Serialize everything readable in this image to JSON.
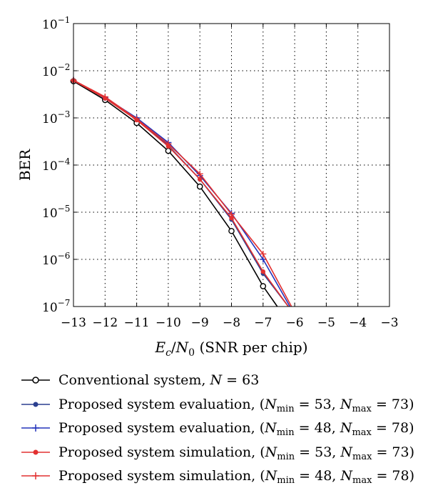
{
  "chart_data": {
    "type": "line",
    "xlabel": "E_c/N_0 (SNR per chip)",
    "xlabel_parts": {
      "var1": "E",
      "sub1": "c",
      "slash": "/",
      "var2": "N",
      "sub2": "0",
      "rest": " (SNR per chip)"
    },
    "ylabel": "BER",
    "xlim": [
      -13,
      -3
    ],
    "ylim": [
      1e-07,
      0.1
    ],
    "y_scale": "log",
    "grid": true,
    "grid_style": "dotted",
    "legend_placement": "below",
    "x_ticks": [
      -13,
      -12,
      -11,
      -10,
      -9,
      -8,
      -7,
      -6,
      -5,
      -4,
      -3
    ],
    "x_tick_labels": [
      "−13",
      "−12",
      "−11",
      "−10",
      "−9",
      "−8",
      "−7",
      "−6",
      "−5",
      "−4",
      "−3"
    ],
    "y_ticks": [
      {
        "base": "10",
        "exp": "−7",
        "value": 1e-07
      },
      {
        "base": "10",
        "exp": "−6",
        "value": 1e-06
      },
      {
        "base": "10",
        "exp": "−5",
        "value": 1e-05
      },
      {
        "base": "10",
        "exp": "−4",
        "value": 0.0001
      },
      {
        "base": "10",
        "exp": "−3",
        "value": 0.001
      },
      {
        "base": "10",
        "exp": "−2",
        "value": 0.01
      },
      {
        "base": "10",
        "exp": "−1",
        "value": 0.1
      }
    ],
    "series": [
      {
        "name": "Conventional system, N = 63",
        "color": "#000000",
        "marker": "circle-open",
        "x": [
          -13,
          -12,
          -11,
          -10,
          -9,
          -8,
          -7,
          -6.55
        ],
        "y": [
          0.006,
          0.0024,
          0.00078,
          0.0002,
          3.5e-05,
          4e-06,
          2.7e-07,
          1e-07
        ]
      },
      {
        "name": "Proposed system evaluation, (N_min = 53, N_max = 73)",
        "color": "#2b3f8f",
        "marker": "dot",
        "x": [
          -13,
          -12,
          -11,
          -10,
          -9,
          -8,
          -7,
          -6.2
        ],
        "y": [
          0.0062,
          0.0026,
          0.00095,
          0.00026,
          5e-05,
          7e-06,
          5e-07,
          1e-07
        ]
      },
      {
        "name": "Proposed system evaluation, (N_min = 48, N_max = 78)",
        "color": "#2233bb",
        "marker": "plus",
        "x": [
          -13,
          -12,
          -11,
          -10,
          -9,
          -8,
          -7,
          -6.15
        ],
        "y": [
          0.0063,
          0.0027,
          0.001,
          0.0003,
          6e-05,
          9.5e-06,
          1e-06,
          1e-07
        ]
      },
      {
        "name": "Proposed system simulation, (N_min = 53, N_max = 73)",
        "color": "#e23030",
        "marker": "dot",
        "x": [
          -13,
          -12,
          -11,
          -10,
          -9,
          -8,
          -7,
          -6.2
        ],
        "y": [
          0.0062,
          0.0026,
          0.0009,
          0.00025,
          5e-05,
          7.5e-06,
          5.5e-07,
          1e-07
        ]
      },
      {
        "name": "Proposed system simulation, (N_min = 48, N_max = 78)",
        "color": "#e23030",
        "marker": "plus",
        "x": [
          -13,
          -12,
          -11,
          -10,
          -9,
          -8,
          -7,
          -6.1
        ],
        "y": [
          0.0063,
          0.0028,
          0.00095,
          0.00028,
          6.5e-05,
          9e-06,
          1.3e-06,
          1e-07
        ]
      }
    ]
  },
  "legend": {
    "items": [
      {
        "pre": "Conventional system, ",
        "var_n": "N",
        "mid": " = 63"
      },
      {
        "pre": "Proposed system evaluation, (",
        "n1": "N",
        "s1": "min",
        "v1": " = 53, ",
        "n2": "N",
        "s2": "max",
        "v2": " = 73)"
      },
      {
        "pre": "Proposed system evaluation, (",
        "n1": "N",
        "s1": "min",
        "v1": " = 48, ",
        "n2": "N",
        "s2": "max",
        "v2": " = 78)"
      },
      {
        "pre": "Proposed system simulation, (",
        "n1": "N",
        "s1": "min",
        "v1": " = 53, ",
        "n2": "N",
        "s2": "max",
        "v2": " = 73)"
      },
      {
        "pre": "Proposed system simulation, (",
        "n1": "N",
        "s1": "min",
        "v1": " = 48, ",
        "n2": "N",
        "s2": "max",
        "v2": " = 78)"
      }
    ]
  }
}
